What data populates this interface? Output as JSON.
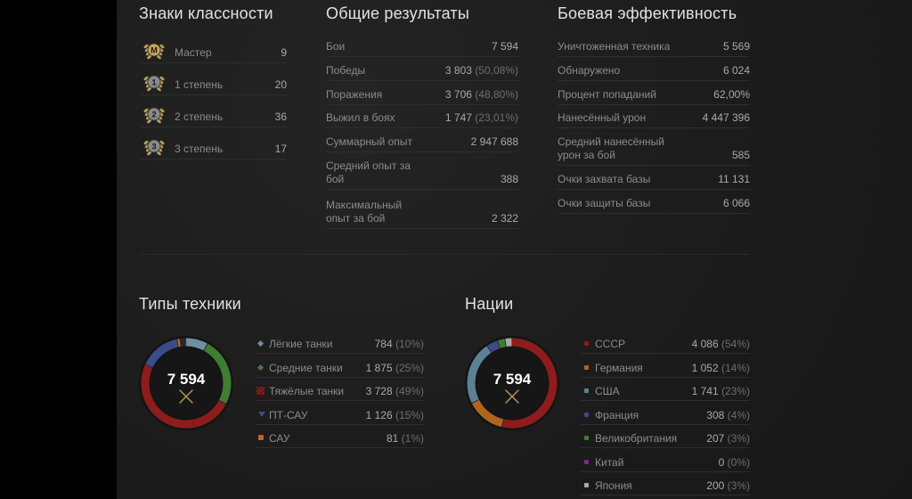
{
  "badges": {
    "title": "Знаки классности",
    "items": [
      {
        "label": "Мастер",
        "value": "9",
        "icon": "M"
      },
      {
        "label": "1 степень",
        "value": "20",
        "icon": "1"
      },
      {
        "label": "2 степень",
        "value": "36",
        "icon": "2"
      },
      {
        "label": "3 степень",
        "value": "17",
        "icon": "3"
      }
    ]
  },
  "overall": {
    "title": "Общие результаты",
    "rows": [
      {
        "label": "Бои",
        "value": "7 594",
        "pct": ""
      },
      {
        "label": "Победы",
        "value": "3 803",
        "pct": "(50,08%)"
      },
      {
        "label": "Поражения",
        "value": "3 706",
        "pct": "(48,80%)"
      },
      {
        "label": "Выжил в боях",
        "value": "1 747",
        "pct": "(23,01%)"
      },
      {
        "label": "Суммарный опыт",
        "value": "2 947 688",
        "pct": ""
      },
      {
        "label": "Средний опыт за бой",
        "value": "388",
        "pct": ""
      },
      {
        "label": "Максимальный опыт за бой",
        "value": "2 322",
        "pct": ""
      }
    ]
  },
  "efficiency": {
    "title": "Боевая эффективность",
    "rows": [
      {
        "label": "Уничтоженная техника",
        "value": "5 569"
      },
      {
        "label": "Обнаружено",
        "value": "6 024"
      },
      {
        "label": "Процент попаданий",
        "value": "62,00%"
      },
      {
        "label": "Нанесённый урон",
        "value": "4 447 396"
      },
      {
        "label": "Средний нанесённый урон за бой",
        "value": "585"
      },
      {
        "label": "Очки захвата базы",
        "value": "11 131"
      },
      {
        "label": "Очки защиты базы",
        "value": "6 066"
      }
    ]
  },
  "vehicle_types": {
    "title": "Типы техники",
    "total": "7 594",
    "items": [
      {
        "label": "Лёгкие танки",
        "value": "784",
        "pct": "(10%)",
        "share": 10.3,
        "color": "#6d8fa0",
        "icon": "light-tank-icon"
      },
      {
        "label": "Средние танки",
        "value": "1 875",
        "pct": "(25%)",
        "share": 24.7,
        "color": "#3f7d33",
        "icon": "medium-tank-icon"
      },
      {
        "label": "Тяжёлые танки",
        "value": "3 728",
        "pct": "(49%)",
        "share": 49.1,
        "color": "#8e1c1c",
        "icon": "heavy-tank-icon"
      },
      {
        "label": "ПТ-САУ",
        "value": "1 126",
        "pct": "(15%)",
        "share": 14.8,
        "color": "#3a4c8a",
        "icon": "td-icon"
      },
      {
        "label": "САУ",
        "value": "81",
        "pct": "(1%)",
        "share": 1.1,
        "color": "#c0651e",
        "icon": "spg-icon"
      }
    ]
  },
  "nations": {
    "title": "Нации",
    "total": "7 594",
    "items": [
      {
        "label": "СССР",
        "value": "4 086",
        "pct": "(54%)",
        "share": 53.8,
        "color": "#8e1c1c"
      },
      {
        "label": "Германия",
        "value": "1 052",
        "pct": "(14%)",
        "share": 13.9,
        "color": "#b0651e"
      },
      {
        "label": "США",
        "value": "1 741",
        "pct": "(23%)",
        "share": 22.9,
        "color": "#5b8294"
      },
      {
        "label": "Франция",
        "value": "308",
        "pct": "(4%)",
        "share": 4.1,
        "color": "#3a4c8a"
      },
      {
        "label": "Великобритания",
        "value": "207",
        "pct": "(3%)",
        "share": 2.7,
        "color": "#3f7d33"
      },
      {
        "label": "Китай",
        "value": "0",
        "pct": "(0%)",
        "share": 0,
        "color": "#7a2a8a"
      },
      {
        "label": "Япония",
        "value": "200",
        "pct": "(3%)",
        "share": 2.6,
        "color": "#a8a8a8"
      }
    ]
  }
}
